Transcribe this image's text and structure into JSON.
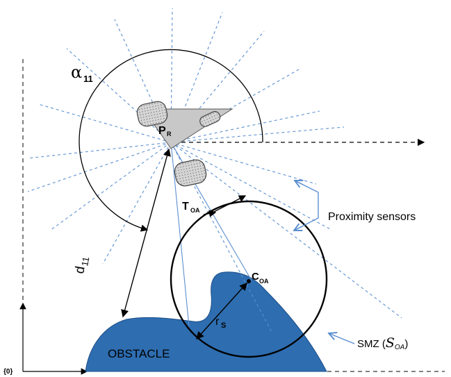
{
  "labels": {
    "alpha": "α",
    "alpha_sub": "11",
    "robot_point": "P",
    "robot_point_sub": "R",
    "d_label": "d",
    "d_sub": "11",
    "tangent_point": "T",
    "tangent_point_sub": "OA",
    "center_point": "C",
    "center_point_sub": "OA",
    "radius": "r",
    "radius_sub": "S",
    "proximity_sensors": "Proximity sensors",
    "obstacle": "OBSTACLE",
    "smz_prefix": "SMZ (",
    "smz_symbol": "S",
    "smz_sub": "OA",
    "smz_suffix": ")",
    "origin": "{0}"
  },
  "colors": {
    "obstacle_fill": "#2e6db0",
    "sensor_line": "#5b8fd0",
    "robot_fill": "#c8c8c8",
    "wheel_fill": "#d6d6d6",
    "ink": "#000000"
  }
}
